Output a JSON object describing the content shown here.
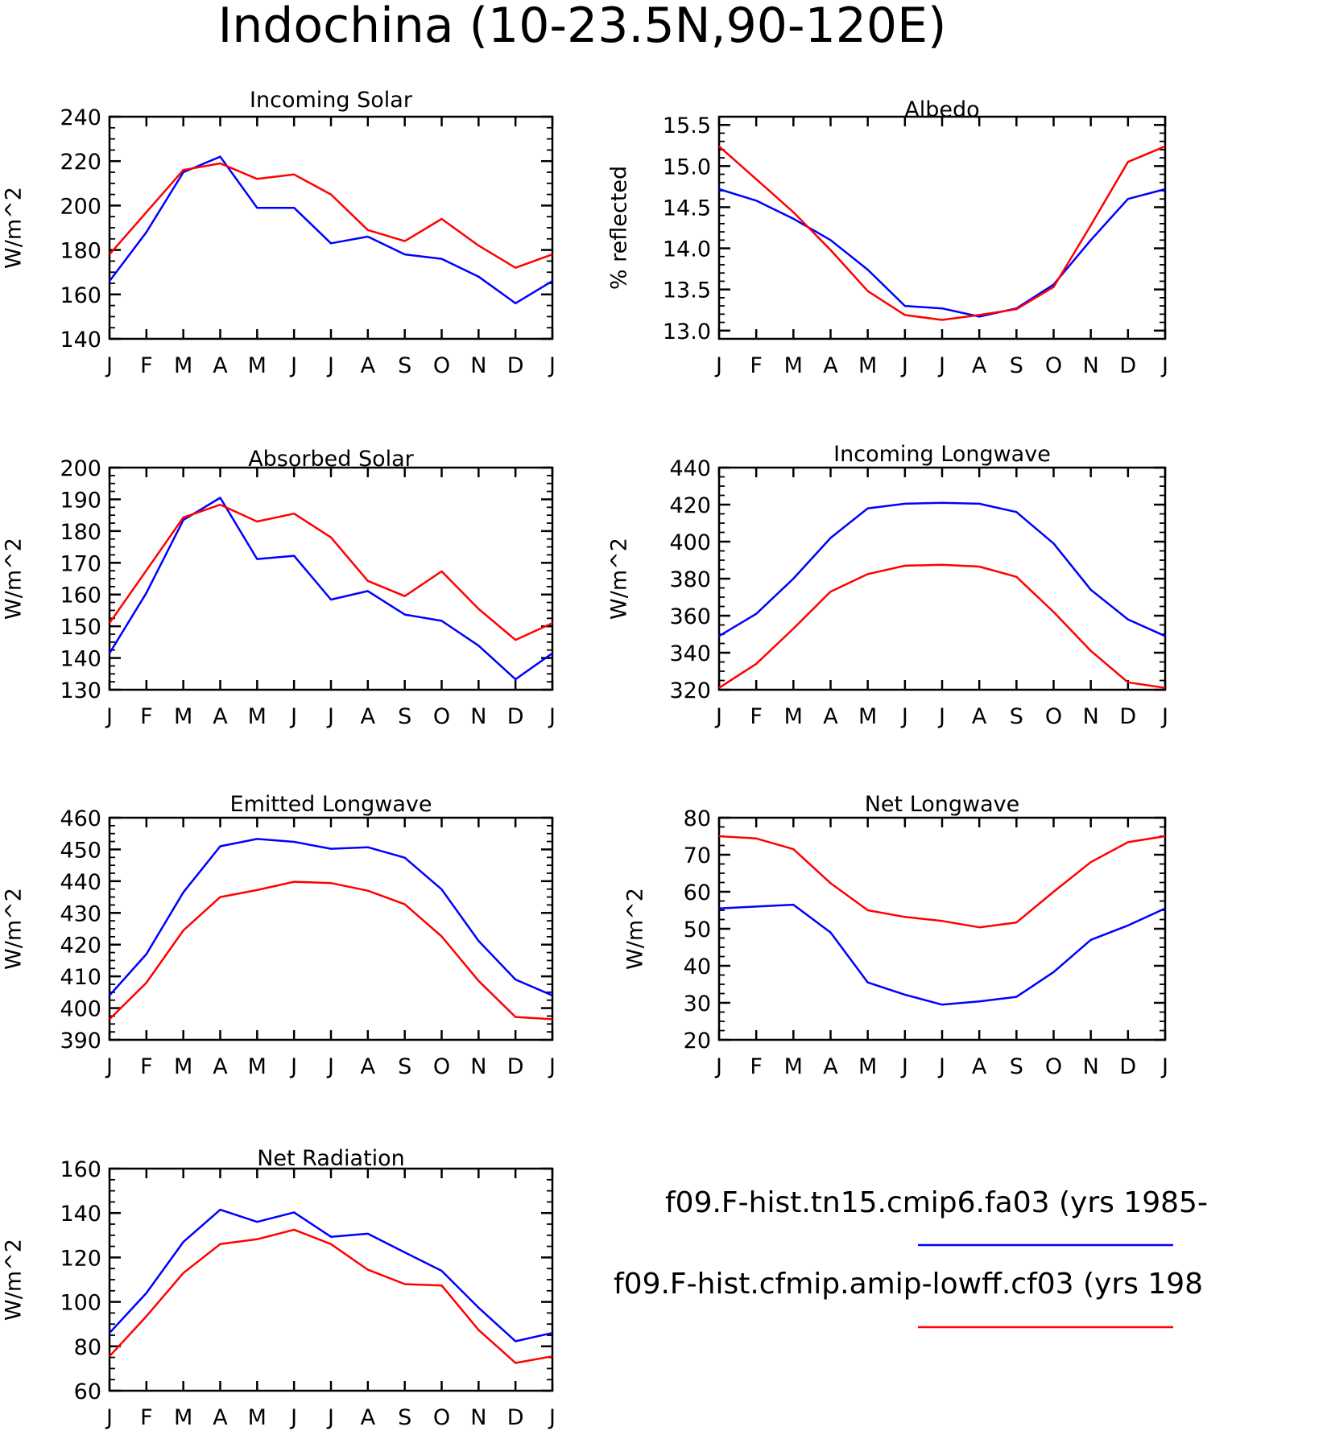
{
  "figure": {
    "title": "Indochina (10-23.5N,90-120E)",
    "series_colors": [
      "#0000ff",
      "#ff0000"
    ],
    "month_labels": [
      "J",
      "F",
      "M",
      "A",
      "M",
      "J",
      "J",
      "A",
      "S",
      "O",
      "N",
      "D",
      "J"
    ]
  },
  "legend": {
    "entries": [
      {
        "name": "f09.F-hist.tn15.cmip6.fa03 (yrs 1985-",
        "color": "#0000ff"
      },
      {
        "name": "f09.F-hist.cfmip.amip-lowff.cf03 (yrs 198",
        "color": "#ff0000"
      }
    ]
  },
  "chart_data": [
    {
      "type": "line",
      "title": "Incoming Solar",
      "ylabel": "W/m^2",
      "ylim": [
        140,
        240
      ],
      "yticks": [
        140,
        160,
        180,
        200,
        220,
        240
      ],
      "ytick_labels": [
        "140",
        "160",
        "180",
        "200",
        "220",
        "240"
      ],
      "categories": [
        "J",
        "F",
        "M",
        "A",
        "M",
        "J",
        "J",
        "A",
        "S",
        "O",
        "N",
        "D",
        "J"
      ],
      "series": [
        {
          "name": "f09.F-hist.tn15.cmip6.fa03",
          "color": "#0000ff",
          "values": [
            166,
            188,
            215,
            222,
            199,
            199,
            183,
            186,
            178,
            176,
            168,
            156,
            166
          ]
        },
        {
          "name": "f09.F-hist.cfmip.amip-lowff.cf03",
          "color": "#ff0000",
          "values": [
            178,
            197,
            216,
            219,
            212,
            214,
            205,
            189,
            184,
            194,
            182,
            172,
            178
          ]
        }
      ]
    },
    {
      "type": "line",
      "title": "Albedo",
      "ylabel": "% reflected",
      "ylim": [
        12.9,
        15.6
      ],
      "yticks": [
        13.0,
        13.5,
        14.0,
        14.5,
        15.0,
        15.5
      ],
      "ytick_labels": [
        "13.0",
        "13.5",
        "14.0",
        "14.5",
        "15.0",
        "15.5"
      ],
      "categories": [
        "J",
        "F",
        "M",
        "A",
        "M",
        "J",
        "J",
        "A",
        "S",
        "O",
        "N",
        "D",
        "J"
      ],
      "series": [
        {
          "name": "f09.F-hist.tn15.cmip6.fa03",
          "color": "#0000ff",
          "values": [
            14.72,
            14.58,
            14.36,
            14.1,
            13.74,
            13.3,
            13.27,
            13.17,
            13.27,
            13.56,
            14.1,
            14.6,
            14.72
          ]
        },
        {
          "name": "f09.F-hist.cfmip.amip-lowff.cf03",
          "color": "#ff0000",
          "values": [
            15.24,
            14.84,
            14.44,
            13.98,
            13.48,
            13.19,
            13.13,
            13.19,
            13.26,
            13.53,
            14.28,
            15.05,
            15.24
          ]
        }
      ]
    },
    {
      "type": "line",
      "title": "Absorbed Solar",
      "ylabel": "W/m^2",
      "ylim": [
        130,
        200
      ],
      "yticks": [
        130,
        140,
        150,
        160,
        170,
        180,
        190,
        200
      ],
      "ytick_labels": [
        "130",
        "140",
        "150",
        "160",
        "170",
        "180",
        "190",
        "200"
      ],
      "categories": [
        "J",
        "F",
        "M",
        "A",
        "M",
        "J",
        "J",
        "A",
        "S",
        "O",
        "N",
        "D",
        "J"
      ],
      "series": [
        {
          "name": "f09.F-hist.tn15.cmip6.fa03",
          "color": "#0000ff",
          "values": [
            141.5,
            160.5,
            183.5,
            190.5,
            171.2,
            172.2,
            158.4,
            161.1,
            153.7,
            151.7,
            143.9,
            133.3,
            141.5
          ]
        },
        {
          "name": "f09.F-hist.cfmip.amip-lowff.cf03",
          "color": "#ff0000",
          "values": [
            151,
            167.6,
            184.3,
            188.3,
            183,
            185.5,
            178,
            164.3,
            159.5,
            167.3,
            155.5,
            145.7,
            151
          ]
        }
      ]
    },
    {
      "type": "line",
      "title": "Incoming Longwave",
      "ylabel": "W/m^2",
      "ylim": [
        320,
        440
      ],
      "yticks": [
        320,
        340,
        360,
        380,
        400,
        420,
        440
      ],
      "ytick_labels": [
        "320",
        "340",
        "360",
        "380",
        "400",
        "420",
        "440"
      ],
      "categories": [
        "J",
        "F",
        "M",
        "A",
        "M",
        "J",
        "J",
        "A",
        "S",
        "O",
        "N",
        "D",
        "J"
      ],
      "series": [
        {
          "name": "f09.F-hist.tn15.cmip6.fa03",
          "color": "#0000ff",
          "values": [
            349,
            361,
            380,
            402,
            418,
            420.5,
            421,
            420.5,
            416,
            399,
            374,
            358,
            349
          ]
        },
        {
          "name": "f09.F-hist.cfmip.amip-lowff.cf03",
          "color": "#ff0000",
          "values": [
            321,
            334,
            353,
            373,
            382.5,
            387,
            387.5,
            386.5,
            381,
            362,
            341,
            324,
            321
          ]
        }
      ]
    },
    {
      "type": "line",
      "title": "Emitted Longwave",
      "ylabel": "W/m^2",
      "ylim": [
        390,
        460
      ],
      "yticks": [
        390,
        400,
        410,
        420,
        430,
        440,
        450,
        460
      ],
      "ytick_labels": [
        "390",
        "400",
        "410",
        "420",
        "430",
        "440",
        "450",
        "460"
      ],
      "categories": [
        "J",
        "F",
        "M",
        "A",
        "M",
        "J",
        "J",
        "A",
        "S",
        "O",
        "N",
        "D",
        "J"
      ],
      "series": [
        {
          "name": "f09.F-hist.tn15.cmip6.fa03",
          "color": "#0000ff",
          "values": [
            404,
            417,
            436.5,
            451,
            453.3,
            452.4,
            450.2,
            450.7,
            447.4,
            437.4,
            421.2,
            409,
            404
          ]
        },
        {
          "name": "f09.F-hist.cfmip.amip-lowff.cf03",
          "color": "#ff0000",
          "values": [
            396.5,
            408,
            424.5,
            435,
            437.2,
            439.8,
            439.4,
            437,
            432.7,
            422.6,
            408.6,
            397.2,
            396.5
          ]
        }
      ]
    },
    {
      "type": "line",
      "title": "Net Longwave",
      "ylabel": "W/m^2",
      "ylim": [
        20,
        80
      ],
      "yticks": [
        20,
        30,
        40,
        50,
        60,
        70,
        80
      ],
      "ytick_labels": [
        "20",
        "30",
        "40",
        "50",
        "60",
        "70",
        "80"
      ],
      "categories": [
        "J",
        "F",
        "M",
        "A",
        "M",
        "J",
        "J",
        "A",
        "S",
        "O",
        "N",
        "D",
        "J"
      ],
      "series": [
        {
          "name": "f09.F-hist.tn15.cmip6.fa03",
          "color": "#0000ff",
          "values": [
            55.5,
            56,
            56.5,
            49,
            35.5,
            32.2,
            29.5,
            30.4,
            31.6,
            38.3,
            47,
            50.9,
            55.5
          ]
        },
        {
          "name": "f09.F-hist.cfmip.amip-lowff.cf03",
          "color": "#ff0000",
          "values": [
            75,
            74.4,
            71.5,
            62.3,
            55,
            53.2,
            52.1,
            50.4,
            51.7,
            60,
            68,
            73.4,
            75
          ]
        }
      ]
    },
    {
      "type": "line",
      "title": "Net Radiation",
      "ylabel": "W/m^2",
      "ylim": [
        60,
        160
      ],
      "yticks": [
        60,
        80,
        100,
        120,
        140,
        160
      ],
      "ytick_labels": [
        "60",
        "80",
        "100",
        "120",
        "140",
        "160"
      ],
      "categories": [
        "J",
        "F",
        "M",
        "A",
        "M",
        "J",
        "J",
        "A",
        "S",
        "O",
        "N",
        "D",
        "J"
      ],
      "series": [
        {
          "name": "f09.F-hist.tn15.cmip6.fa03",
          "color": "#0000ff",
          "values": [
            86,
            104,
            127,
            141.5,
            136,
            140.3,
            129.3,
            130.7,
            122.3,
            114,
            97.4,
            82.3,
            86
          ]
        },
        {
          "name": "f09.F-hist.cfmip.amip-lowff.cf03",
          "color": "#ff0000",
          "values": [
            75.5,
            93.5,
            113,
            126,
            128.2,
            132.5,
            126,
            114.5,
            108,
            107.4,
            87.4,
            72.5,
            75.5
          ]
        }
      ]
    }
  ]
}
